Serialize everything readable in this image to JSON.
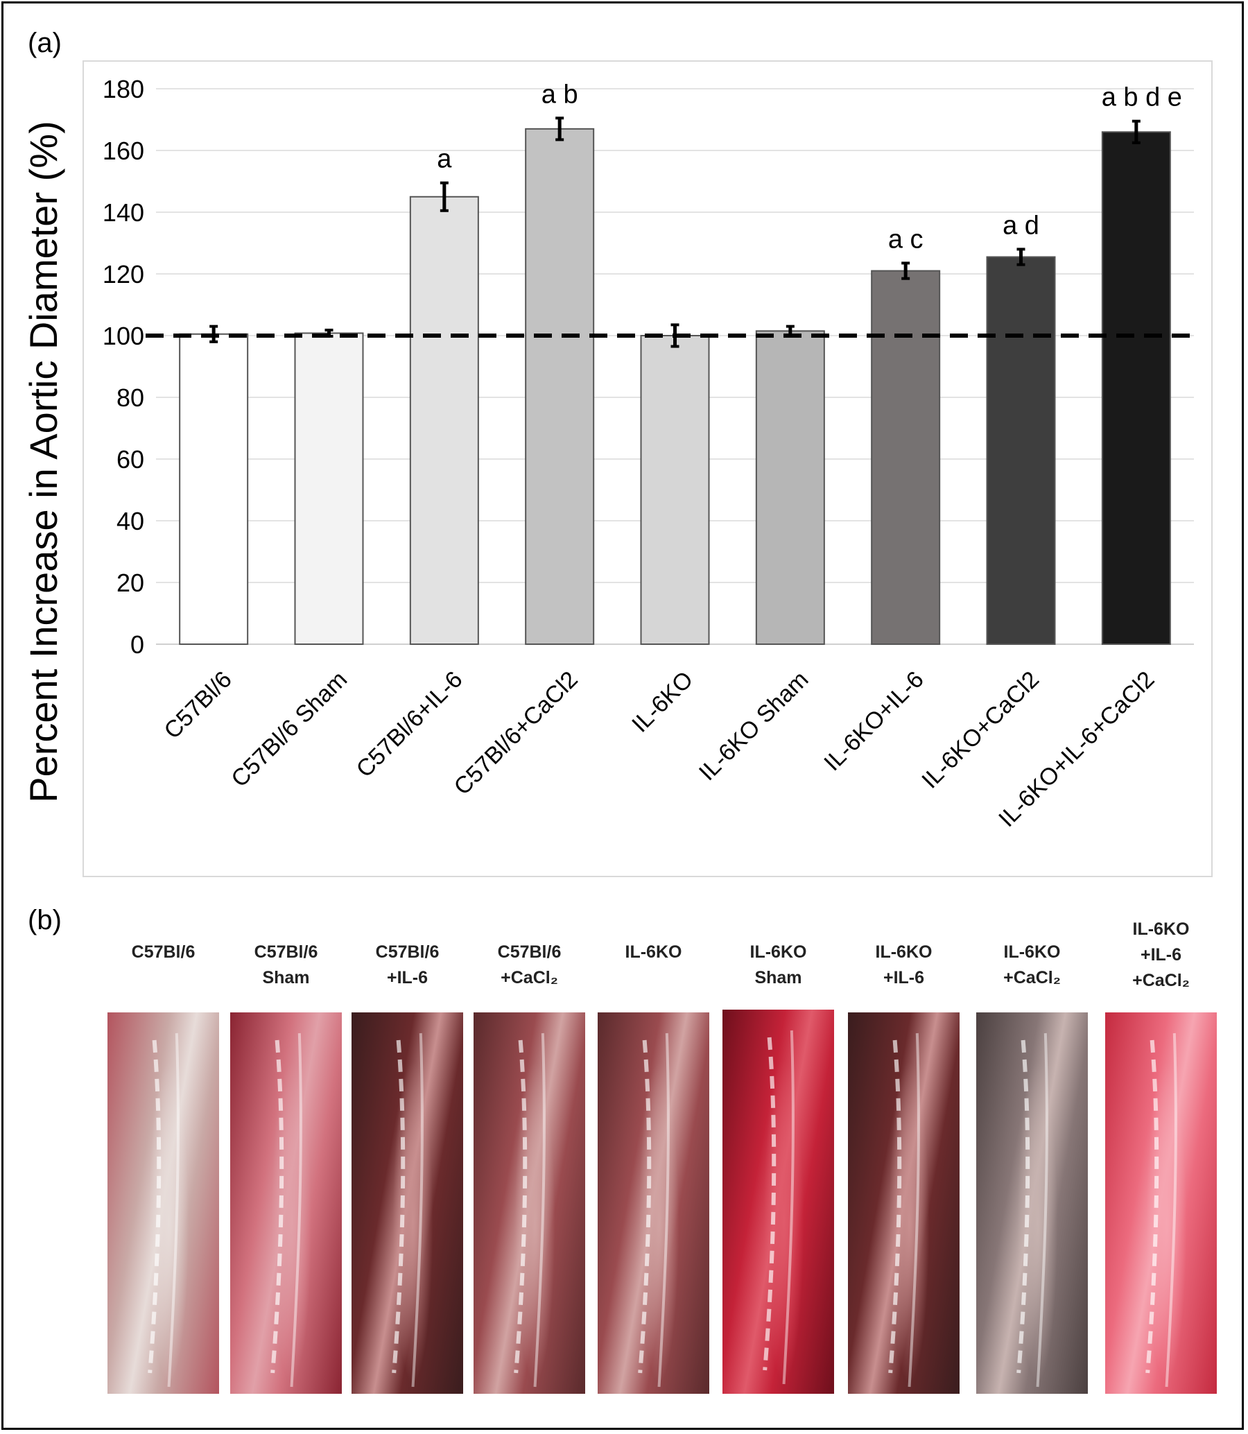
{
  "panel_a_label": "(a)",
  "panel_b_label": "(b)",
  "chart_data": {
    "type": "bar",
    "ylabel": "Percent Increase in Aortic Diameter (%)",
    "xlabel": "",
    "ylim": [
      0,
      180
    ],
    "yticks": [
      0,
      20,
      40,
      60,
      80,
      100,
      120,
      140,
      160,
      180
    ],
    "grid": true,
    "reference_line": 100,
    "categories": [
      "C57Bl/6",
      "C57Bl/6 Sham",
      "C57Bl/6+IL-6",
      "C57Bl/6+CaCl2",
      "IL-6KO",
      "IL-6KO Sham",
      "IL-6KO+IL-6",
      "IL-6KO+CaCl2",
      "IL-6KO+IL-6+CaCl2"
    ],
    "values": [
      100.5,
      100.8,
      145,
      167,
      100,
      101.5,
      121,
      125.5,
      166
    ],
    "errors": [
      2.5,
      1,
      4.5,
      3.5,
      3.5,
      1.5,
      2.5,
      2.5,
      3.5
    ],
    "annotations": [
      "",
      "",
      "a",
      "a b",
      "",
      "",
      "a c",
      "a d",
      "a b d e"
    ],
    "colors": [
      "#ffffff",
      "#f3f3f3",
      "#e2e2e2",
      "#c2c2c2",
      "#d6d6d6",
      "#b6b6b6",
      "#767272",
      "#3e3e3e",
      "#1a1a1a"
    ]
  },
  "photos": [
    {
      "caption": [
        "C57Bl/6"
      ],
      "tone": "pale"
    },
    {
      "caption": [
        "C57Bl/6",
        "Sham"
      ],
      "tone": "red"
    },
    {
      "caption": [
        "C57Bl/6",
        "+IL-6"
      ],
      "tone": "dark"
    },
    {
      "caption": [
        "C57Bl/6",
        "+CaCl₂"
      ],
      "tone": "mid"
    },
    {
      "caption": [
        "IL-6KO"
      ],
      "tone": "mid"
    },
    {
      "caption": [
        "IL-6KO",
        "Sham"
      ],
      "tone": "deepred"
    },
    {
      "caption": [
        "IL-6KO",
        "+IL-6"
      ],
      "tone": "dark"
    },
    {
      "caption": [
        "IL-6KO",
        "+CaCl₂"
      ],
      "tone": "grey"
    },
    {
      "caption": [
        "IL-6KO",
        "+IL-6",
        "+CaCl₂"
      ],
      "tone": "bright"
    }
  ]
}
